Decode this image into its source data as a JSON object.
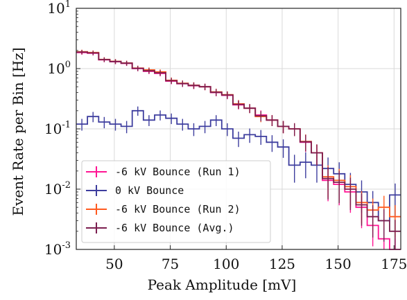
{
  "chart_data": {
    "type": "line",
    "xlabel": "Peak Amplitude [mV]",
    "ylabel": "Event Rate per Bin [Hz]",
    "xlim": [
      33,
      178
    ],
    "ylim": [
      0.001,
      10
    ],
    "yscale": "log",
    "grid": true,
    "legend_position": "lower-left",
    "x_ticks": [
      50,
      75,
      100,
      125,
      150,
      175
    ],
    "x_tick_labels": [
      "50",
      "75",
      "100",
      "125",
      "150",
      "175"
    ],
    "y_tick_labels": [
      {
        "base": "10",
        "exp": "1",
        "value": 10
      },
      {
        "base": "10",
        "exp": "0",
        "value": 1
      },
      {
        "base": "10",
        "exp": "-1",
        "value": 0.1
      },
      {
        "base": "10",
        "exp": "-2",
        "value": 0.01
      },
      {
        "base": "10",
        "exp": "-3",
        "value": 0.001
      }
    ],
    "bin_edges": [
      33,
      38,
      43,
      48,
      53,
      58,
      63,
      68,
      73,
      78,
      83,
      88,
      93,
      98,
      103,
      108,
      113,
      118,
      123,
      128,
      133,
      138,
      143,
      148,
      153,
      158,
      163,
      168,
      173,
      178
    ],
    "series": [
      {
        "name": "-6 kV Bounce (Run 1)",
        "color": "#ff1493",
        "values": [
          1.85,
          1.8,
          1.4,
          1.3,
          1.22,
          1.0,
          0.9,
          0.83,
          0.62,
          0.56,
          0.52,
          0.5,
          0.4,
          0.36,
          0.25,
          0.22,
          0.17,
          0.14,
          0.11,
          0.1,
          0.06,
          0.04,
          0.014,
          0.012,
          0.009,
          0.005,
          0.0025,
          0.0015,
          0.001
        ]
      },
      {
        "name": "0 kV Bounce",
        "color": "#3d3d9e",
        "values": [
          0.12,
          0.16,
          0.13,
          0.12,
          0.11,
          0.2,
          0.14,
          0.17,
          0.15,
          0.12,
          0.1,
          0.11,
          0.14,
          0.1,
          0.07,
          0.08,
          0.075,
          0.06,
          0.05,
          0.025,
          0.028,
          0.025,
          0.022,
          0.018,
          0.012,
          0.009,
          0.006,
          0.003,
          0.008
        ]
      },
      {
        "name": "-6 kV Bounce (Run 2)",
        "color": "#ff5a1f",
        "values": [
          1.9,
          1.85,
          1.42,
          1.32,
          1.24,
          1.02,
          0.95,
          0.88,
          0.64,
          0.57,
          0.53,
          0.5,
          0.41,
          0.37,
          0.26,
          0.22,
          0.16,
          0.14,
          0.11,
          0.1,
          0.062,
          0.04,
          0.016,
          0.014,
          0.011,
          0.006,
          0.0045,
          0.005,
          0.0035
        ]
      },
      {
        "name": "-6 kV Bounce (Avg.)",
        "color": "#7b1e4f",
        "values": [
          1.88,
          1.82,
          1.41,
          1.31,
          1.23,
          1.01,
          0.92,
          0.85,
          0.63,
          0.565,
          0.525,
          0.5,
          0.405,
          0.365,
          0.255,
          0.22,
          0.165,
          0.14,
          0.11,
          0.1,
          0.061,
          0.04,
          0.015,
          0.013,
          0.01,
          0.0055,
          0.0035,
          0.003,
          0.002
        ]
      }
    ]
  }
}
